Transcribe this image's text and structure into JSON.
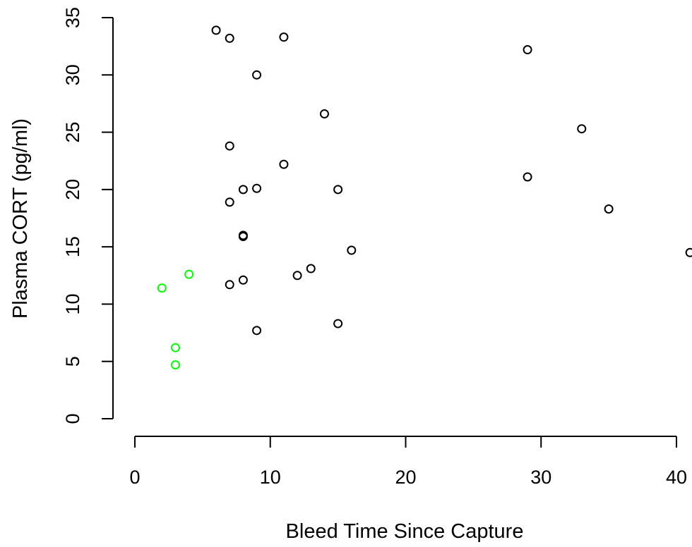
{
  "chart_data": {
    "type": "scatter",
    "xlabel": "Bleed Time Since Capture",
    "ylabel": "Plasma CORT (pg/ml)",
    "xlim": [
      0,
      40
    ],
    "ylim": [
      0,
      35
    ],
    "xticks": [
      0,
      10,
      20,
      30,
      40
    ],
    "yticks": [
      0,
      5,
      10,
      15,
      20,
      25,
      30,
      35
    ],
    "grid": false,
    "series": [
      {
        "color": "#000000",
        "points": [
          {
            "x": 6,
            "y": 33.9
          },
          {
            "x": 7,
            "y": 33.2
          },
          {
            "x": 11,
            "y": 33.3
          },
          {
            "x": 29,
            "y": 32.2
          },
          {
            "x": 9,
            "y": 30.0
          },
          {
            "x": 14,
            "y": 26.6
          },
          {
            "x": 33,
            "y": 25.3
          },
          {
            "x": 7,
            "y": 23.8
          },
          {
            "x": 11,
            "y": 22.2
          },
          {
            "x": 29,
            "y": 21.1
          },
          {
            "x": 9,
            "y": 20.1
          },
          {
            "x": 8,
            "y": 20.0
          },
          {
            "x": 15,
            "y": 20.0
          },
          {
            "x": 7,
            "y": 18.9
          },
          {
            "x": 35,
            "y": 18.3
          },
          {
            "x": 8,
            "y": 16.0
          },
          {
            "x": 8,
            "y": 15.9
          },
          {
            "x": 16,
            "y": 14.7
          },
          {
            "x": 41,
            "y": 14.5
          },
          {
            "x": 13,
            "y": 13.1
          },
          {
            "x": 12,
            "y": 12.5
          },
          {
            "x": 8,
            "y": 12.1
          },
          {
            "x": 7,
            "y": 11.7
          },
          {
            "x": 15,
            "y": 8.3
          },
          {
            "x": 9,
            "y": 7.7
          }
        ]
      },
      {
        "color": "#00ff00",
        "points": [
          {
            "x": 4,
            "y": 12.6
          },
          {
            "x": 2,
            "y": 11.4
          },
          {
            "x": 3,
            "y": 6.2
          },
          {
            "x": 3,
            "y": 4.7
          }
        ]
      }
    ]
  }
}
